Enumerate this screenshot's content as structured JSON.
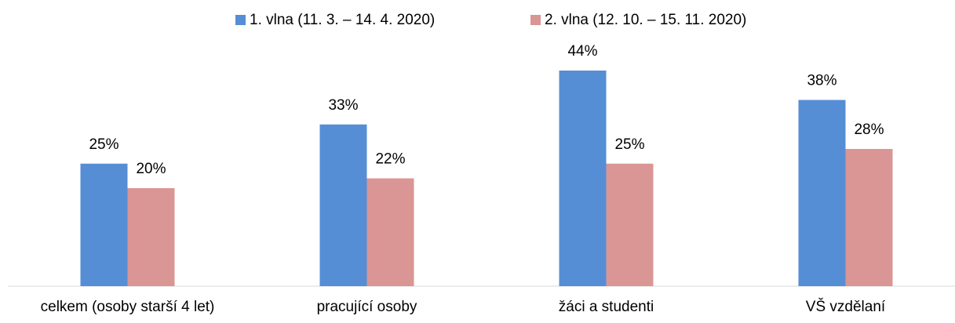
{
  "chart_data": {
    "type": "bar",
    "categories": [
      "celkem (osoby starší 4 let)",
      "pracující osoby",
      "žáci a studenti",
      "VŠ vzdělaní"
    ],
    "series": [
      {
        "name": "1. vlna (11. 3. – 14. 4. 2020)",
        "color": "#558ed5",
        "values": [
          25,
          33,
          44,
          38
        ],
        "value_labels": [
          "25%",
          "33%",
          "44%",
          "38%"
        ]
      },
      {
        "name": "2. vlna (12. 10. – 15. 11. 2020)",
        "color": "#d99694",
        "values": [
          20,
          22,
          25,
          28
        ],
        "value_labels": [
          "20%",
          "22%",
          "25%",
          "28%"
        ]
      }
    ],
    "legend": "top"
  }
}
